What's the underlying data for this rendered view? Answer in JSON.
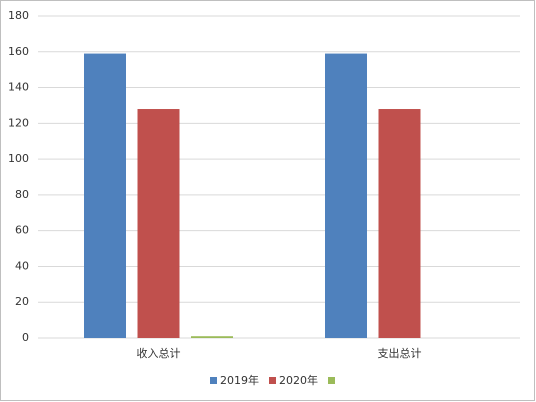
{
  "chart_data": {
    "type": "bar",
    "categories": [
      "收入总计",
      "支出总计"
    ],
    "series": [
      {
        "name": "2019年",
        "color": "#4f81bd",
        "values": [
          159,
          159
        ]
      },
      {
        "name": "2020年",
        "color": "#c0504d",
        "values": [
          128,
          128
        ]
      },
      {
        "color": "#9bbb59",
        "values": [
          1,
          0
        ]
      }
    ],
    "ylim": [
      0,
      180
    ],
    "yticks": [
      0,
      20,
      40,
      60,
      80,
      100,
      120,
      140,
      160,
      180
    ],
    "grid": true,
    "legend": "bottom"
  }
}
